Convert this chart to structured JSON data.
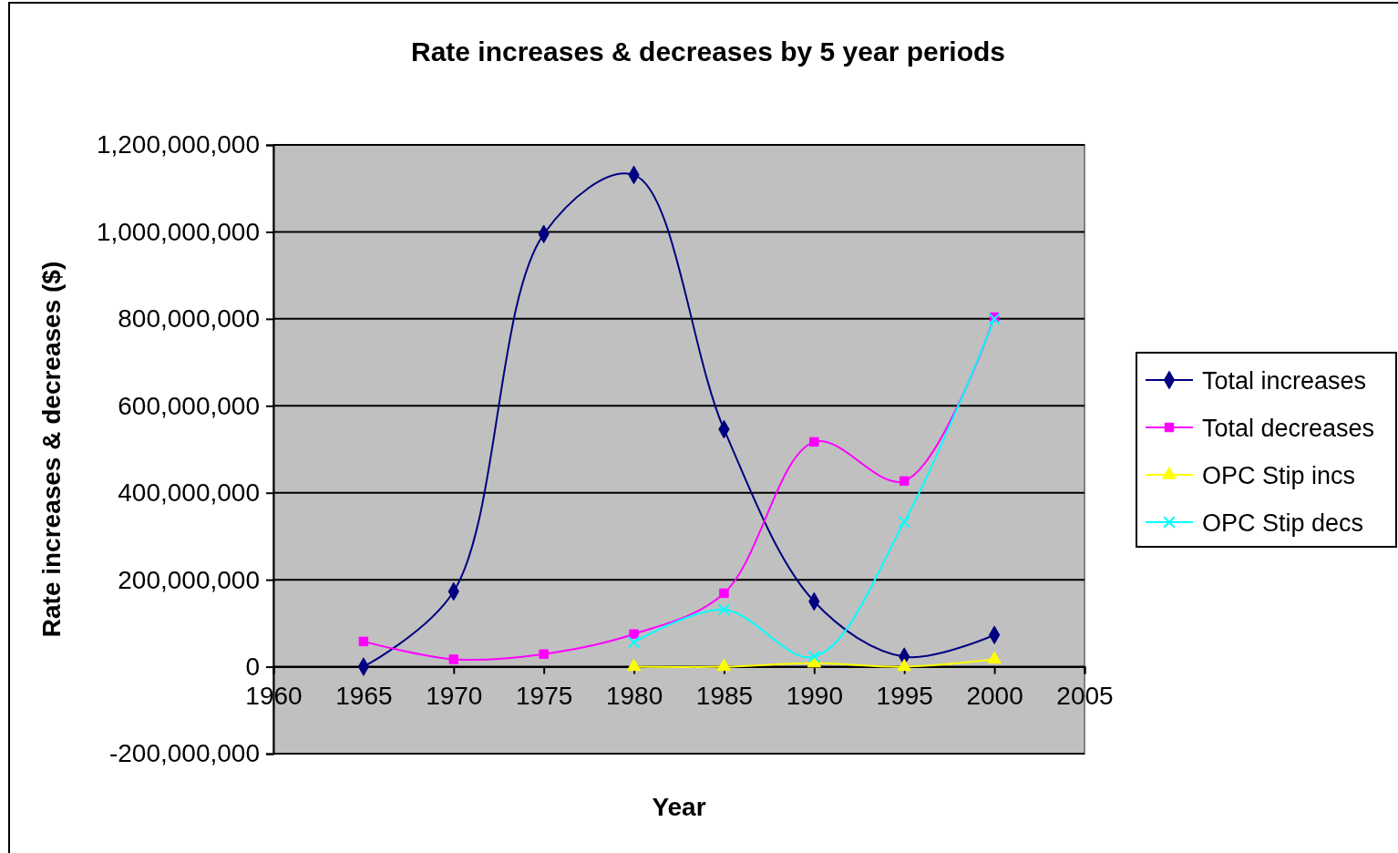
{
  "chart_data": {
    "type": "line",
    "title": "Rate increases & decreases by 5 year periods",
    "xlabel": "Year",
    "ylabel": "Rate increases & decreases ($)",
    "x": [
      1965,
      1970,
      1975,
      1980,
      1985,
      1990,
      1995,
      2000
    ],
    "series": [
      {
        "name": "Total increases",
        "color": "#000080",
        "marker": "diamond",
        "values": [
          0,
          173000000,
          995000000,
          1131000000,
          546000000,
          150000000,
          23000000,
          73000000
        ]
      },
      {
        "name": "Total decreases",
        "color": "#ff00ff",
        "marker": "square",
        "values": [
          58000000,
          17000000,
          29000000,
          75000000,
          169000000,
          517000000,
          427000000,
          804000000
        ]
      },
      {
        "name": "OPC Stip incs",
        "color": "#ffff00",
        "marker": "triangle",
        "values": [
          null,
          null,
          null,
          0,
          0,
          8000000,
          0,
          17000000
        ]
      },
      {
        "name": "OPC Stip decs",
        "color": "#00ffff",
        "marker": "cross",
        "values": [
          null,
          null,
          null,
          56000000,
          131000000,
          23000000,
          333000000,
          800000000
        ]
      }
    ],
    "xlim": [
      1960,
      2005
    ],
    "xticks": [
      1960,
      1965,
      1970,
      1975,
      1980,
      1985,
      1990,
      1995,
      2000,
      2005
    ],
    "ylim": [
      -200000000,
      1200000000
    ],
    "yticks": [
      {
        "value": -200000000,
        "label": "-200,000,000"
      },
      0,
      {
        "value": 200000000,
        "label": "200,000,000"
      },
      {
        "value": 400000000,
        "label": "400,000,000"
      },
      {
        "value": 600000000,
        "label": "600,000,000"
      },
      {
        "value": 800000000,
        "label": "800,000,000"
      },
      {
        "value": 1000000000,
        "label": "1,000,000,000"
      },
      {
        "value": 1200000000,
        "label": "1,200,000,000"
      }
    ],
    "grid": "y",
    "legend": "right"
  }
}
